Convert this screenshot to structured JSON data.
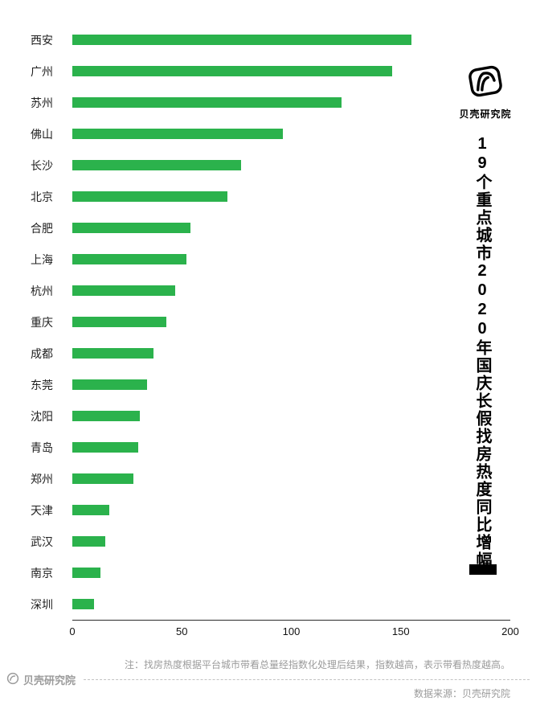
{
  "chart_data": {
    "type": "bar",
    "orientation": "horizontal",
    "title": "19个重点城市2020年国庆长假找房热度同比增幅",
    "categories": [
      "西安",
      "广州",
      "苏州",
      "佛山",
      "长沙",
      "北京",
      "合肥",
      "上海",
      "杭州",
      "重庆",
      "成都",
      "东莞",
      "沈阳",
      "青岛",
      "郑州",
      "天津",
      "武汉",
      "南京",
      "深圳"
    ],
    "values": [
      155,
      146,
      123,
      96,
      77,
      71,
      54,
      52,
      47,
      43,
      37,
      34,
      31,
      30,
      28,
      17,
      15,
      13,
      10
    ],
    "xlim": [
      0,
      200
    ],
    "x_ticks": [
      0,
      50,
      100,
      150,
      200
    ],
    "bar_color": "#2BB24C",
    "grid": false,
    "legend_position": "none"
  },
  "branding": {
    "top_logo_label": "贝壳研究院",
    "footer_logo_label": "贝壳研究院"
  },
  "footer": {
    "note": "注：找房热度根据平台城市带看总量经指数化处理后结果，指数越高，表示带看热度越高。",
    "source": "数据来源：贝壳研究院"
  }
}
